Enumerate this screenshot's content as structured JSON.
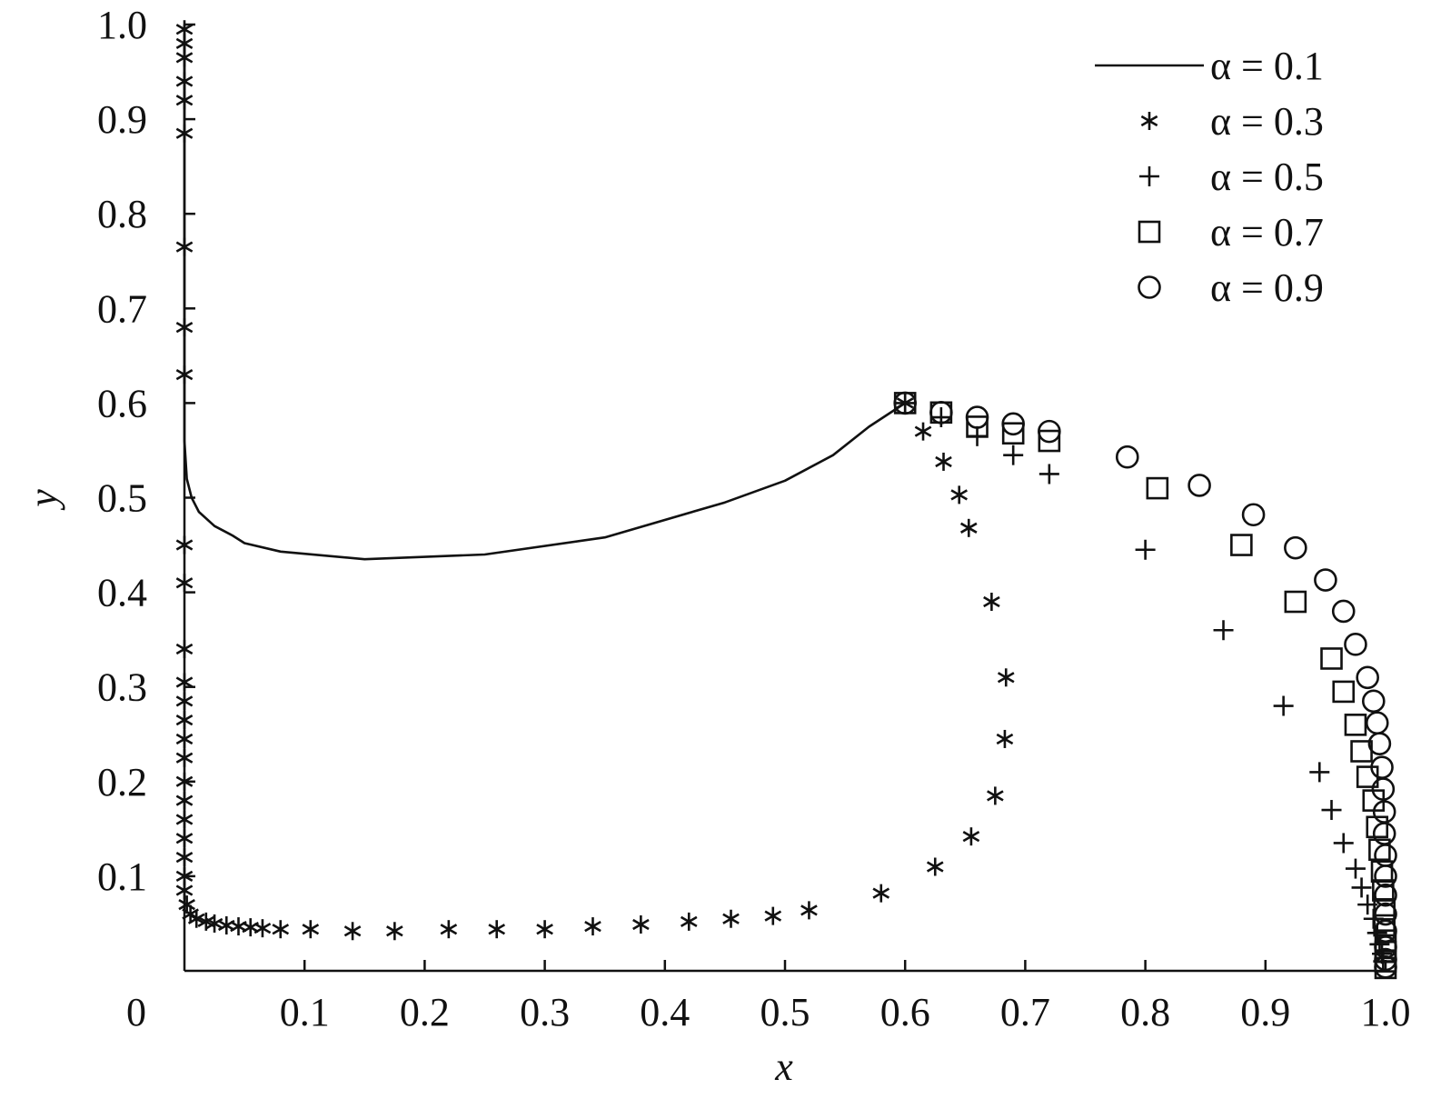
{
  "chart_data": {
    "type": "scatter",
    "title": "",
    "xlabel": "x",
    "ylabel": "y",
    "xlim": [
      0,
      1.0
    ],
    "ylim": [
      0,
      1.0
    ],
    "origin_label": "0",
    "x_ticks": [
      "0.1",
      "0.2",
      "0.3",
      "0.4",
      "0.5",
      "0.6",
      "0.7",
      "0.8",
      "0.9",
      "1.0"
    ],
    "y_ticks": [
      "0.1",
      "0.2",
      "0.3",
      "0.4",
      "0.5",
      "0.6",
      "0.7",
      "0.8",
      "0.9",
      "1.0"
    ],
    "grid": false,
    "legend_position": "top-right",
    "series": [
      {
        "name": "α = 0.1",
        "marker": "line",
        "points": [
          [
            0,
            0.99
          ],
          [
            0,
            0.9
          ],
          [
            0,
            0.8
          ],
          [
            0,
            0.7
          ],
          [
            0,
            0.6
          ],
          [
            0,
            0.56
          ],
          [
            0.002,
            0.52
          ],
          [
            0.006,
            0.5
          ],
          [
            0.012,
            0.485
          ],
          [
            0.025,
            0.47
          ],
          [
            0.04,
            0.46
          ],
          [
            0.05,
            0.452
          ],
          [
            0.08,
            0.443
          ],
          [
            0.15,
            0.435
          ],
          [
            0.25,
            0.44
          ],
          [
            0.35,
            0.458
          ],
          [
            0.45,
            0.495
          ],
          [
            0.5,
            0.518
          ],
          [
            0.54,
            0.545
          ],
          [
            0.57,
            0.575
          ],
          [
            0.6,
            0.6
          ]
        ]
      },
      {
        "name": "α = 0.3",
        "marker": "asterisk",
        "points": [
          [
            0,
            0.995
          ],
          [
            0,
            0.98
          ],
          [
            0,
            0.965
          ],
          [
            0,
            0.94
          ],
          [
            0,
            0.92
          ],
          [
            0,
            0.885
          ],
          [
            0,
            0.765
          ],
          [
            0,
            0.68
          ],
          [
            0,
            0.63
          ],
          [
            0,
            0.45
          ],
          [
            0,
            0.41
          ],
          [
            0,
            0.34
          ],
          [
            0,
            0.305
          ],
          [
            0,
            0.285
          ],
          [
            0,
            0.265
          ],
          [
            0,
            0.245
          ],
          [
            0,
            0.225
          ],
          [
            0,
            0.2
          ],
          [
            0,
            0.18
          ],
          [
            0,
            0.16
          ],
          [
            0,
            0.14
          ],
          [
            0,
            0.12
          ],
          [
            0,
            0.1
          ],
          [
            0,
            0.085
          ],
          [
            0.002,
            0.07
          ],
          [
            0.005,
            0.06
          ],
          [
            0.01,
            0.055
          ],
          [
            0.018,
            0.052
          ],
          [
            0.025,
            0.05
          ],
          [
            0.035,
            0.048
          ],
          [
            0.045,
            0.047
          ],
          [
            0.055,
            0.046
          ],
          [
            0.065,
            0.045
          ],
          [
            0.08,
            0.044
          ],
          [
            0.105,
            0.044
          ],
          [
            0.14,
            0.042
          ],
          [
            0.175,
            0.042
          ],
          [
            0.22,
            0.044
          ],
          [
            0.26,
            0.044
          ],
          [
            0.3,
            0.044
          ],
          [
            0.34,
            0.047
          ],
          [
            0.38,
            0.049
          ],
          [
            0.42,
            0.052
          ],
          [
            0.455,
            0.055
          ],
          [
            0.49,
            0.058
          ],
          [
            0.52,
            0.064
          ],
          [
            0.58,
            0.082
          ],
          [
            0.625,
            0.11
          ],
          [
            0.655,
            0.142
          ],
          [
            0.675,
            0.185
          ],
          [
            0.683,
            0.245
          ],
          [
            0.684,
            0.31
          ],
          [
            0.672,
            0.39
          ],
          [
            0.653,
            0.468
          ],
          [
            0.645,
            0.503
          ],
          [
            0.632,
            0.538
          ],
          [
            0.615,
            0.57
          ],
          [
            0.6,
            0.6
          ]
        ]
      },
      {
        "name": "α = 0.5",
        "marker": "plus",
        "points": [
          [
            0.6,
            0.6
          ],
          [
            0.63,
            0.585
          ],
          [
            0.66,
            0.565
          ],
          [
            0.69,
            0.545
          ],
          [
            0.72,
            0.525
          ],
          [
            0.8,
            0.445
          ],
          [
            0.865,
            0.36
          ],
          [
            0.915,
            0.28
          ],
          [
            0.945,
            0.21
          ],
          [
            0.955,
            0.17
          ],
          [
            0.965,
            0.135
          ],
          [
            0.975,
            0.108
          ],
          [
            0.98,
            0.088
          ],
          [
            0.985,
            0.07
          ],
          [
            0.99,
            0.055
          ],
          [
            0.993,
            0.04
          ],
          [
            0.995,
            0.028
          ],
          [
            0.997,
            0.018
          ],
          [
            0.998,
            0.01
          ]
        ]
      },
      {
        "name": "α = 0.7",
        "marker": "square",
        "points": [
          [
            0.6,
            0.6
          ],
          [
            0.63,
            0.59
          ],
          [
            0.66,
            0.575
          ],
          [
            0.69,
            0.568
          ],
          [
            0.72,
            0.56
          ],
          [
            0.81,
            0.51
          ],
          [
            0.88,
            0.45
          ],
          [
            0.925,
            0.39
          ],
          [
            0.955,
            0.33
          ],
          [
            0.965,
            0.295
          ],
          [
            0.975,
            0.26
          ],
          [
            0.98,
            0.232
          ],
          [
            0.985,
            0.205
          ],
          [
            0.99,
            0.18
          ],
          [
            0.993,
            0.152
          ],
          [
            0.995,
            0.128
          ],
          [
            0.997,
            0.105
          ],
          [
            0.998,
            0.085
          ],
          [
            0.999,
            0.065
          ],
          [
            0.999,
            0.048
          ],
          [
            1.0,
            0.032
          ],
          [
            1.0,
            0.02
          ],
          [
            1.0,
            0.01
          ],
          [
            1.0,
            0.003
          ]
        ]
      },
      {
        "name": "α = 0.9",
        "marker": "circle",
        "points": [
          [
            0.6,
            0.6
          ],
          [
            0.63,
            0.59
          ],
          [
            0.66,
            0.585
          ],
          [
            0.69,
            0.578
          ],
          [
            0.72,
            0.57
          ],
          [
            0.785,
            0.543
          ],
          [
            0.845,
            0.513
          ],
          [
            0.89,
            0.482
          ],
          [
            0.925,
            0.447
          ],
          [
            0.95,
            0.413
          ],
          [
            0.965,
            0.38
          ],
          [
            0.975,
            0.345
          ],
          [
            0.985,
            0.31
          ],
          [
            0.99,
            0.285
          ],
          [
            0.993,
            0.262
          ],
          [
            0.995,
            0.24
          ],
          [
            0.997,
            0.215
          ],
          [
            0.998,
            0.192
          ],
          [
            0.999,
            0.168
          ],
          [
            0.999,
            0.145
          ],
          [
            1.0,
            0.122
          ],
          [
            1.0,
            0.1
          ],
          [
            1.0,
            0.08
          ],
          [
            1.0,
            0.06
          ],
          [
            1.0,
            0.042
          ],
          [
            1.0,
            0.025
          ],
          [
            1.0,
            0.012
          ],
          [
            1.0,
            0.004
          ]
        ]
      }
    ]
  }
}
